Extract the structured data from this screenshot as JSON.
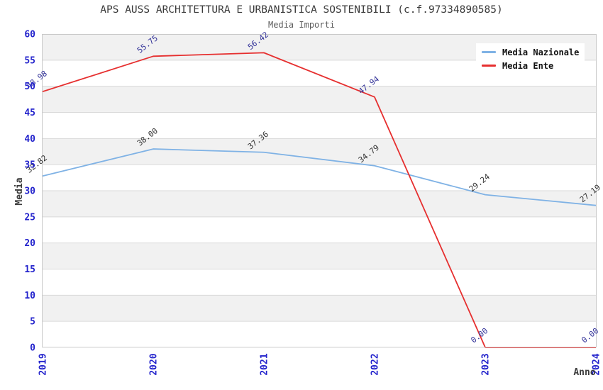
{
  "header": {
    "title": "APS AUSS ARCHITETTURA E URBANISTICA SOSTENIBILI (c.f.97334890585)",
    "subtitle": "Media Importi"
  },
  "chart_data": {
    "type": "line",
    "title": "APS AUSS ARCHITETTURA E URBANISTICA SOSTENIBILI (c.f.97334890585)",
    "subtitle": "Media Importi",
    "xlabel": "Anno",
    "ylabel": "Media",
    "categories": [
      "2019",
      "2020",
      "2021",
      "2022",
      "2023",
      "2024"
    ],
    "series": [
      {
        "name": "Media Nazionale",
        "color": "#7fb2e5",
        "label_color": "#333333",
        "values": [
          32.82,
          38.0,
          37.36,
          34.79,
          29.24,
          27.19
        ],
        "labels": [
          "32.82",
          "38.00",
          "37.36",
          "34.79",
          "29.24",
          "27.19"
        ]
      },
      {
        "name": "Media Ente",
        "color": "#e62f2f",
        "label_color": "#333399",
        "values": [
          48.98,
          55.75,
          56.42,
          47.94,
          0.0,
          0.0
        ],
        "labels": [
          "48.98",
          "55.75",
          "56.42",
          "47.94",
          "0.00",
          "0.00"
        ]
      }
    ],
    "ylim": [
      0,
      60
    ],
    "y_ticks": [
      0,
      5,
      10,
      15,
      20,
      25,
      30,
      35,
      40,
      45,
      50,
      55,
      60
    ],
    "grid": "horizontal gridlines every 5 with alternating shaded bands",
    "legend_position": "top-right",
    "colors": {
      "tick_label": "#2323cc",
      "band_fill": "#f1f1f1",
      "gridline": "#d9d9d9",
      "plot_border": "#c9c9c9"
    }
  }
}
